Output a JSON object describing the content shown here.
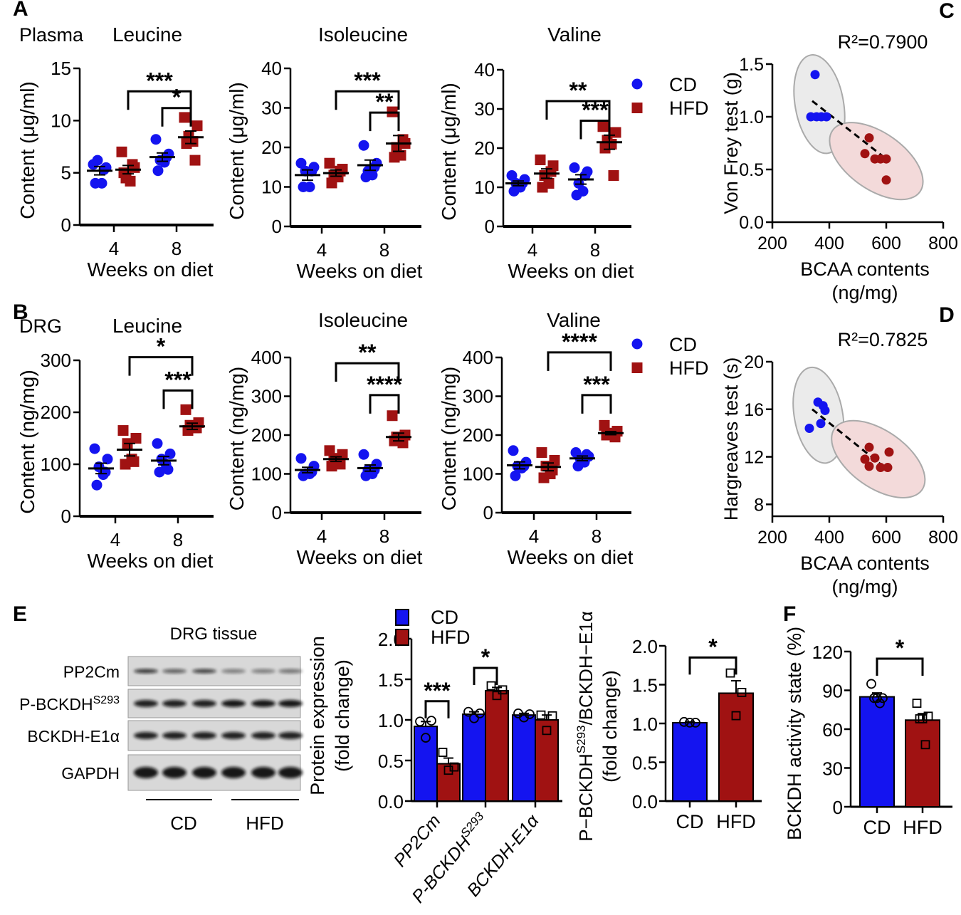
{
  "panel_labels": {
    "A": "A",
    "B": "B",
    "C": "C",
    "D": "D",
    "E": "E",
    "F": "F"
  },
  "legend": {
    "cd": "CD",
    "hfd": "HFD"
  },
  "colors": {
    "cd": "#1414f0",
    "hfd": "#a01212",
    "cd_ellipse": "#ebebeb",
    "hfd_ellipse": "#f3dada"
  },
  "blot": {
    "title": "DRG tissue",
    "rows": [
      {
        "label": "PP2Cm"
      },
      {
        "label": "P-BCKDH",
        "sup": "S293"
      },
      {
        "label": "BCKDH-E1α"
      },
      {
        "label": "GAPDH"
      }
    ],
    "groups": [
      "CD",
      "HFD"
    ]
  },
  "chart_data": [
    {
      "id": "A1",
      "type": "scatter",
      "group_label": "Plasma",
      "title": "Leucine",
      "ylabel": "Content (μg/ml)",
      "xlabel": "Weeks on diet",
      "ylim": [
        0,
        15
      ],
      "yticks": [
        0,
        5,
        10,
        15
      ],
      "xticks": [
        4,
        8
      ],
      "groups": [
        {
          "week": 4,
          "diet": "CD",
          "values": [
            5.8,
            5.5,
            6.2,
            4.0,
            4.0,
            5.3
          ],
          "mean": 5.2,
          "sem": 0.4
        },
        {
          "week": 4,
          "diet": "HFD",
          "values": [
            7.0,
            5.5,
            4.5,
            4.2,
            5.0,
            5.8
          ],
          "mean": 5.3,
          "sem": 0.4
        },
        {
          "week": 8,
          "diet": "CD",
          "values": [
            8.2,
            6.8,
            6.2,
            6.0,
            5.2,
            6.5
          ],
          "mean": 6.5,
          "sem": 0.4
        },
        {
          "week": 8,
          "diet": "HFD",
          "values": [
            10.3,
            9.5,
            8.5,
            8.0,
            7.8,
            6.2
          ],
          "mean": 8.4,
          "sem": 0.6
        }
      ],
      "comparisons": [
        {
          "from": [
            4,
            "HFD"
          ],
          "to": [
            8,
            "HFD"
          ],
          "label": "***",
          "y": 12.8
        },
        {
          "from": [
            8,
            "CD"
          ],
          "to": [
            8,
            "HFD"
          ],
          "label": "*",
          "y": 11.2
        }
      ]
    },
    {
      "id": "A2",
      "type": "scatter",
      "title": "Isoleucine",
      "ylabel": "Content (μg/ml)",
      "xlabel": "Weeks on diet",
      "ylim": [
        0,
        40
      ],
      "yticks": [
        0,
        10,
        20,
        30,
        40
      ],
      "xticks": [
        4,
        8
      ],
      "groups": [
        {
          "week": 4,
          "diet": "CD",
          "values": [
            16,
            15,
            14,
            10,
            10,
            14
          ],
          "mean": 13,
          "sem": 1.3
        },
        {
          "week": 4,
          "diet": "HFD",
          "values": [
            16,
            14.5,
            13,
            12.5,
            11,
            14
          ],
          "mean": 13.5,
          "sem": 0.8
        },
        {
          "week": 8,
          "diet": "CD",
          "values": [
            20.5,
            16,
            14,
            13,
            12.5,
            15
          ],
          "mean": 15.5,
          "sem": 1.3
        },
        {
          "week": 8,
          "diet": "HFD",
          "values": [
            29,
            21,
            20,
            18,
            17.5,
            22
          ],
          "mean": 21,
          "sem": 2
        }
      ],
      "comparisons": [
        {
          "from": [
            4,
            "HFD"
          ],
          "to": [
            8,
            "HFD"
          ],
          "label": "***",
          "y": 34.2
        },
        {
          "from": [
            8,
            "CD"
          ],
          "to": [
            8,
            "HFD"
          ],
          "label": "**",
          "y": 28.8
        }
      ]
    },
    {
      "id": "A3",
      "type": "scatter",
      "title": "Valine",
      "ylabel": "Content (μg/ml)",
      "xlabel": "Weeks on diet",
      "ylim": [
        0,
        40
      ],
      "yticks": [
        0,
        10,
        20,
        30,
        40
      ],
      "xticks": [
        4,
        8
      ],
      "groups": [
        {
          "week": 4,
          "diet": "CD",
          "values": [
            13,
            12,
            11,
            10,
            9,
            11
          ],
          "mean": 11,
          "sem": 0.6
        },
        {
          "week": 4,
          "diet": "HFD",
          "values": [
            17,
            15.5,
            13,
            11,
            10,
            14
          ],
          "mean": 13.5,
          "sem": 1.2
        },
        {
          "week": 8,
          "diet": "CD",
          "values": [
            15,
            14,
            11,
            9,
            8,
            13
          ],
          "mean": 12,
          "sem": 1.2
        },
        {
          "week": 8,
          "diet": "HFD",
          "values": [
            25.5,
            24,
            22,
            21,
            20,
            13
          ],
          "mean": 21.5,
          "sem": 1.8
        }
      ],
      "comparisons": [
        {
          "from": [
            4,
            "HFD"
          ],
          "to": [
            8,
            "HFD"
          ],
          "label": "**",
          "y": 32
        },
        {
          "from": [
            8,
            "CD"
          ],
          "to": [
            8,
            "HFD"
          ],
          "label": "***",
          "y": 27
        }
      ]
    },
    {
      "id": "B1",
      "type": "scatter",
      "group_label": "DRG",
      "title": "Leucine",
      "ylabel": "Content (ng/mg)",
      "xlabel": "Weeks on diet",
      "ylim": [
        0,
        300
      ],
      "yticks": [
        0,
        100,
        200,
        300
      ],
      "xticks": [
        4,
        8
      ],
      "groups": [
        {
          "week": 4,
          "diet": "CD",
          "values": [
            130,
            110,
            95,
            80,
            60,
            85
          ],
          "mean": 92,
          "sem": 10
        },
        {
          "week": 4,
          "diet": "HFD",
          "values": [
            165,
            150,
            140,
            110,
            100,
            105
          ],
          "mean": 128,
          "sem": 12
        },
        {
          "week": 8,
          "diet": "CD",
          "values": [
            140,
            120,
            110,
            100,
            85,
            90
          ],
          "mean": 107,
          "sem": 8
        },
        {
          "week": 8,
          "diet": "HFD",
          "values": [
            205,
            180,
            175,
            170,
            165,
            170
          ],
          "mean": 173,
          "sem": 6
        }
      ],
      "comparisons": [
        {
          "from": [
            4,
            "HFD"
          ],
          "to": [
            8,
            "HFD"
          ],
          "label": "*",
          "y": 306
        },
        {
          "from": [
            8,
            "CD"
          ],
          "to": [
            8,
            "HFD"
          ],
          "label": "***",
          "y": 242
        }
      ]
    },
    {
      "id": "B2",
      "type": "scatter",
      "title": "Isoleucine",
      "ylabel": "Content (ng/mg)",
      "xlabel": "Weeks on diet",
      "ylim": [
        0,
        400
      ],
      "yticks": [
        0,
        100,
        200,
        300,
        400
      ],
      "xticks": [
        4,
        8
      ],
      "groups": [
        {
          "week": 4,
          "diet": "CD",
          "values": [
            140,
            120,
            100,
            100,
            95,
            105
          ],
          "mean": 110,
          "sem": 7
        },
        {
          "week": 4,
          "diet": "HFD",
          "values": [
            160,
            150,
            140,
            135,
            120,
            125
          ],
          "mean": 138,
          "sem": 6
        },
        {
          "week": 8,
          "diet": "CD",
          "values": [
            150,
            125,
            110,
            100,
            95,
            110
          ],
          "mean": 115,
          "sem": 8
        },
        {
          "week": 8,
          "diet": "HFD",
          "values": [
            250,
            200,
            195,
            190,
            185,
            180
          ],
          "mean": 195,
          "sem": 10
        }
      ],
      "comparisons": [
        {
          "from": [
            4,
            "HFD"
          ],
          "to": [
            8,
            "HFD"
          ],
          "label": "**",
          "y": 385
        },
        {
          "from": [
            8,
            "CD"
          ],
          "to": [
            8,
            "HFD"
          ],
          "label": "****",
          "y": 303
        }
      ]
    },
    {
      "id": "B3",
      "type": "scatter",
      "title": "Valine",
      "ylabel": "Content (ng/mg)",
      "xlabel": "Weeks on diet",
      "ylim": [
        0,
        400
      ],
      "yticks": [
        0,
        100,
        200,
        300,
        400
      ],
      "xticks": [
        4,
        8
      ],
      "groups": [
        {
          "week": 4,
          "diet": "CD",
          "values": [
            160,
            130,
            120,
            115,
            95,
            120
          ],
          "mean": 122,
          "sem": 9
        },
        {
          "week": 4,
          "diet": "HFD",
          "values": [
            155,
            135,
            120,
            100,
            90,
            110
          ],
          "mean": 118,
          "sem": 10
        },
        {
          "week": 8,
          "diet": "CD",
          "values": [
            155,
            145,
            140,
            130,
            120,
            150
          ],
          "mean": 140,
          "sem": 6
        },
        {
          "week": 8,
          "diet": "HFD",
          "values": [
            225,
            210,
            205,
            200,
            200,
            195
          ],
          "mean": 205,
          "sem": 4
        }
      ],
      "comparisons": [
        {
          "from": [
            4,
            "HFD"
          ],
          "to": [
            8,
            "HFD"
          ],
          "label": "****",
          "y": 413
        },
        {
          "from": [
            8,
            "CD"
          ],
          "to": [
            8,
            "HFD"
          ],
          "label": "***",
          "y": 303
        }
      ]
    },
    {
      "id": "C",
      "type": "scatter",
      "annotation": "R²=0.7900",
      "ylabel": "Von Frey test (g)",
      "xlabel": "BCAA contents",
      "xlabel2": "(ng/mg)",
      "xlim": [
        200,
        800
      ],
      "xticks": [
        200,
        400,
        600,
        800
      ],
      "ylim": [
        0,
        1.5
      ],
      "yticks": [
        0,
        0.5,
        1.0,
        1.5
      ],
      "ytick_labels": [
        "0.0",
        "0.5",
        "1.0",
        "1.5"
      ],
      "series": [
        {
          "name": "CD",
          "points": [
            [
              350,
              1.4
            ],
            [
              335,
              1.0
            ],
            [
              355,
              1.0
            ],
            [
              372,
              1.0
            ],
            [
              390,
              1.0
            ]
          ]
        },
        {
          "name": "HFD",
          "points": [
            [
              540,
              0.8
            ],
            [
              525,
              0.65
            ],
            [
              560,
              0.6
            ],
            [
              580,
              0.6
            ],
            [
              600,
              0.6
            ],
            [
              600,
              0.4
            ]
          ]
        }
      ],
      "fit": [
        [
          340,
          1.15
        ],
        [
          600,
          0.6
        ]
      ]
    },
    {
      "id": "D",
      "type": "scatter",
      "annotation": "R²=0.7825",
      "ylabel": "Hargreaves test (s)",
      "xlabel": "BCAA contents",
      "xlabel2": "(ng/mg)",
      "xlim": [
        200,
        800
      ],
      "xticks": [
        200,
        400,
        600,
        800
      ],
      "ylim": [
        7,
        20
      ],
      "yticks": [
        8,
        12,
        16,
        20
      ],
      "ytick_labels": [
        "8",
        "12",
        "16",
        "20"
      ],
      "series": [
        {
          "name": "CD",
          "points": [
            [
              330,
              14.4
            ],
            [
              370,
              14.8
            ],
            [
              360,
              16.6
            ],
            [
              385,
              15.9
            ],
            [
              378,
              16.3
            ]
          ]
        },
        {
          "name": "HFD",
          "points": [
            [
              540,
              12.8
            ],
            [
              560,
              11.9
            ],
            [
              580,
              11.1
            ],
            [
              540,
              11.2
            ],
            [
              605,
              11.1
            ],
            [
              610,
              12.4
            ],
            [
              525,
              11.8
            ]
          ]
        }
      ],
      "fit": [
        [
          340,
          16
        ],
        [
          600,
          11
        ]
      ]
    },
    {
      "id": "E1",
      "type": "bar",
      "ylabel": "Protein expression",
      "ylabel2": "(fold change)",
      "ylim": [
        0,
        2
      ],
      "yticks": [
        0,
        0.5,
        1.0,
        1.5,
        2.0
      ],
      "ytick_labels": [
        "0.0",
        "0.5",
        "1.0",
        "1.5",
        "2.0"
      ],
      "categories": [
        {
          "label": "PP2Cm"
        },
        {
          "label": "P-BCKDH",
          "sup": "S293"
        },
        {
          "label": "BCKDH-E1α"
        }
      ],
      "series": [
        {
          "name": "CD",
          "values": [
            0.92,
            1.07,
            1.06
          ],
          "sem": [
            0.06,
            0.03,
            0.02
          ],
          "points": [
            [
              0.98,
              0.99,
              0.78
            ],
            [
              1.1,
              1.08,
              1.02
            ],
            [
              1.08,
              1.07,
              1.03
            ]
          ]
        },
        {
          "name": "HFD",
          "values": [
            0.46,
            1.36,
            1.0
          ],
          "sem": [
            0.07,
            0.04,
            0.06
          ],
          "points": [
            [
              0.6,
              0.42,
              0.38
            ],
            [
              1.42,
              1.37,
              1.3
            ],
            [
              1.06,
              1.05,
              0.87
            ]
          ]
        }
      ],
      "comparisons": [
        {
          "category": 0,
          "label": "***",
          "y": 1.23
        },
        {
          "category": 1,
          "label": "*",
          "y": 1.64
        }
      ]
    },
    {
      "id": "E2",
      "type": "bar",
      "ylabel_parts": {
        "pre": "P−BCKDH",
        "sup": "S293",
        "post": "/BCKDH−E1α"
      },
      "ylabel2": "(fold change)",
      "ylim": [
        0,
        2
      ],
      "yticks": [
        0,
        0.5,
        1.0,
        1.5,
        2.0
      ],
      "ytick_labels": [
        "0.0",
        "0.5",
        "1.0",
        "1.5",
        "2.0"
      ],
      "categories": [
        "CD",
        "HFD"
      ],
      "values": [
        1.01,
        1.39
      ],
      "sem": [
        0.01,
        0.16
      ],
      "points": [
        [
          1.02,
          1.01,
          1.01
        ],
        [
          1.65,
          1.4,
          1.1
        ]
      ],
      "comparisons": [
        {
          "label": "*",
          "y": 1.85
        }
      ]
    },
    {
      "id": "F",
      "type": "bar",
      "ylabel": "BCKDH activity state (%)",
      "ylim": [
        0,
        120
      ],
      "yticks": [
        0,
        30,
        60,
        90,
        120
      ],
      "ytick_labels": [
        "0",
        "30",
        "60",
        "90",
        "120"
      ],
      "categories": [
        "CD",
        "HFD"
      ],
      "values": [
        85,
        67
      ],
      "sem": [
        3,
        5
      ],
      "points": [
        [
          95,
          84,
          84,
          84,
          80
        ],
        [
          80,
          70,
          68,
          68,
          48
        ]
      ],
      "comparisons": [
        {
          "label": "*",
          "y": 114.5
        }
      ]
    }
  ]
}
